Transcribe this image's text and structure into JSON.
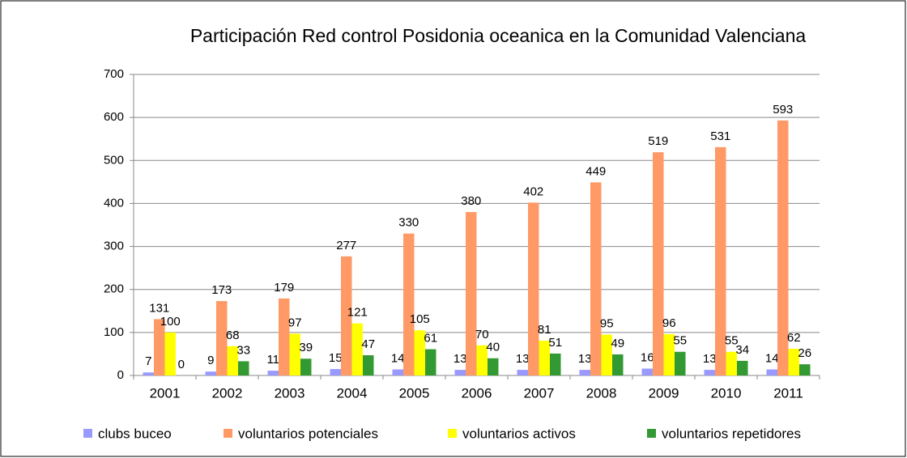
{
  "chart_data": {
    "type": "bar",
    "title": "Participación Red control Posidonia oceanica en la Comunidad Valenciana",
    "categories": [
      "2001",
      "2002",
      "2003",
      "2004",
      "2005",
      "2006",
      "2007",
      "2008",
      "2009",
      "2010",
      "2011"
    ],
    "series": [
      {
        "name": "clubs buceo",
        "color": "#9999ff",
        "values": [
          7,
          9,
          11,
          15,
          14,
          13,
          13,
          13,
          16,
          13,
          14
        ]
      },
      {
        "name": "voluntarios potenciales",
        "color": "#ff9966",
        "values": [
          131,
          173,
          179,
          277,
          330,
          380,
          402,
          449,
          519,
          531,
          593
        ]
      },
      {
        "name": "voluntarios activos",
        "color": "#ffff00",
        "values": [
          100,
          68,
          97,
          121,
          105,
          70,
          81,
          95,
          96,
          55,
          62
        ]
      },
      {
        "name": "voluntarios repetidores",
        "color": "#339933",
        "values": [
          0,
          33,
          39,
          47,
          61,
          40,
          51,
          49,
          55,
          34,
          26
        ]
      }
    ],
    "ylim": [
      0,
      700
    ],
    "yticks": [
      0,
      100,
      200,
      300,
      400,
      500,
      600,
      700
    ],
    "grid": true,
    "legend": "bottom"
  }
}
